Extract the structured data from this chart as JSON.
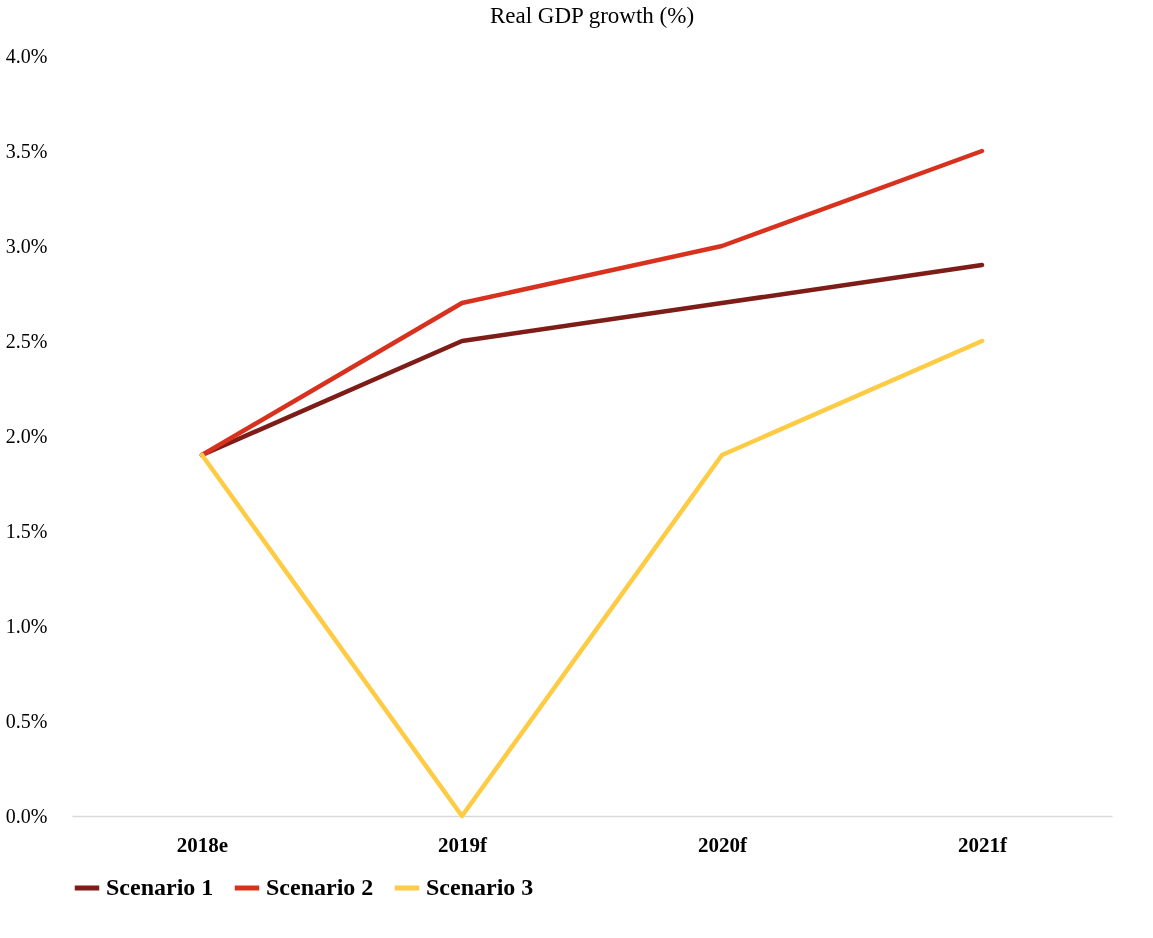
{
  "chart_data": {
    "type": "line",
    "title": "Real GDP growth (%)",
    "categories": [
      "2018e",
      "2019f",
      "2020f",
      "2021f"
    ],
    "series": [
      {
        "name": "Scenario 1",
        "color": "#7e1c17",
        "values": [
          1.9,
          2.5,
          2.7,
          2.9
        ]
      },
      {
        "name": "Scenario 2",
        "color": "#d8321f",
        "values": [
          1.9,
          2.7,
          3.0,
          3.5
        ]
      },
      {
        "name": "Scenario 3",
        "color": "#fdcb44",
        "values": [
          1.9,
          0.0,
          1.9,
          2.5
        ]
      }
    ],
    "ylim": [
      0,
      4.0
    ],
    "yticks": [
      {
        "value": 0,
        "label": "0.0%"
      },
      {
        "value": 0.5,
        "label": "0.5%"
      },
      {
        "value": 1.0,
        "label": "1.0%"
      },
      {
        "value": 1.5,
        "label": "1.5%"
      },
      {
        "value": 2.0,
        "label": "2.0%"
      },
      {
        "value": 2.5,
        "label": "2.5%"
      },
      {
        "value": 3.0,
        "label": "3.0%"
      },
      {
        "value": 3.5,
        "label": "3.5%"
      },
      {
        "value": 4.0,
        "label": "4.0%"
      }
    ],
    "grid": false,
    "legend": "bottom",
    "marker": "none",
    "line_style": "solid"
  }
}
